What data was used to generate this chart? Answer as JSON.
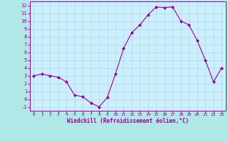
{
  "x": [
    0,
    1,
    2,
    3,
    4,
    5,
    6,
    7,
    8,
    9,
    10,
    11,
    12,
    13,
    14,
    15,
    16,
    17,
    18,
    19,
    20,
    21,
    22,
    23
  ],
  "y": [
    3.0,
    3.2,
    3.0,
    2.8,
    2.2,
    0.5,
    0.3,
    -0.5,
    -1.0,
    0.2,
    3.2,
    6.5,
    8.5,
    9.5,
    10.8,
    11.8,
    11.7,
    11.8,
    10.0,
    9.5,
    7.5,
    5.0,
    2.2,
    4.0
  ],
  "line_color": "#990099",
  "marker": "D",
  "marker_size": 2.0,
  "bg_color": "#b0e8e8",
  "plot_bg_color": "#cceeff",
  "grid_color": "#aadddd",
  "xlabel": "Windchill (Refroidissement éolien,°C)",
  "xlabel_color": "#990099",
  "tick_color": "#990099",
  "spine_color": "#990099",
  "ylim": [
    -1.5,
    12.5
  ],
  "xlim": [
    -0.5,
    23.5
  ],
  "yticks": [
    -1,
    0,
    1,
    2,
    3,
    4,
    5,
    6,
    7,
    8,
    9,
    10,
    11,
    12
  ],
  "xticks": [
    0,
    1,
    2,
    3,
    4,
    5,
    6,
    7,
    8,
    9,
    10,
    11,
    12,
    13,
    14,
    15,
    16,
    17,
    18,
    19,
    20,
    21,
    22,
    23
  ]
}
